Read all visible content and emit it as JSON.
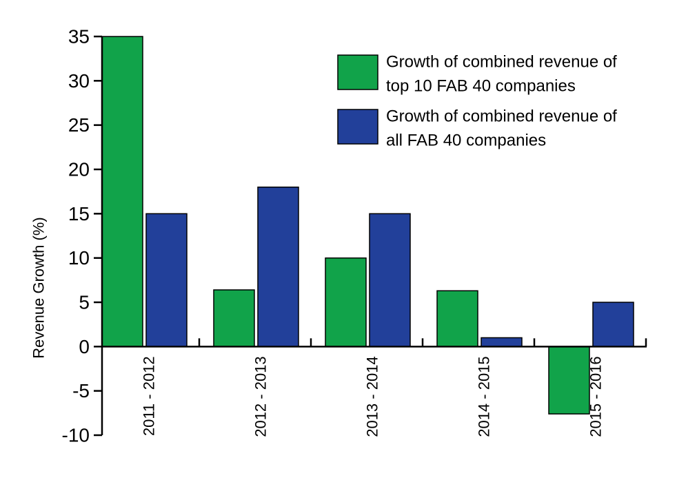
{
  "chart_data": {
    "type": "bar",
    "title": "",
    "xlabel": "",
    "ylabel": "Revenue Growth (%)",
    "ylim": [
      -10,
      35
    ],
    "yticks": [
      35,
      30,
      25,
      20,
      15,
      10,
      5,
      0,
      -5,
      -10
    ],
    "yticklabels": [
      "35",
      "30",
      "25",
      "20",
      "15",
      "10",
      "5",
      "0",
      "-5",
      "-10"
    ],
    "categories": [
      "2011 - 2012",
      "2012 - 2013",
      "2013 - 2014",
      "2014 - 2015",
      "2015 - 2016"
    ],
    "series": [
      {
        "legend_lines": [
          "Growth of combined revenue of",
          "top 10 FAB 40 companies"
        ],
        "color": "#11a34a",
        "values": [
          35,
          6.4,
          10,
          6.3,
          -7.6
        ]
      },
      {
        "legend_lines": [
          "Growth of combined revenue of",
          "all FAB 40 companies"
        ],
        "color": "#22409a",
        "values": [
          15,
          18,
          15,
          1,
          5
        ]
      }
    ],
    "legend_position": "top-right",
    "grid": false
  }
}
